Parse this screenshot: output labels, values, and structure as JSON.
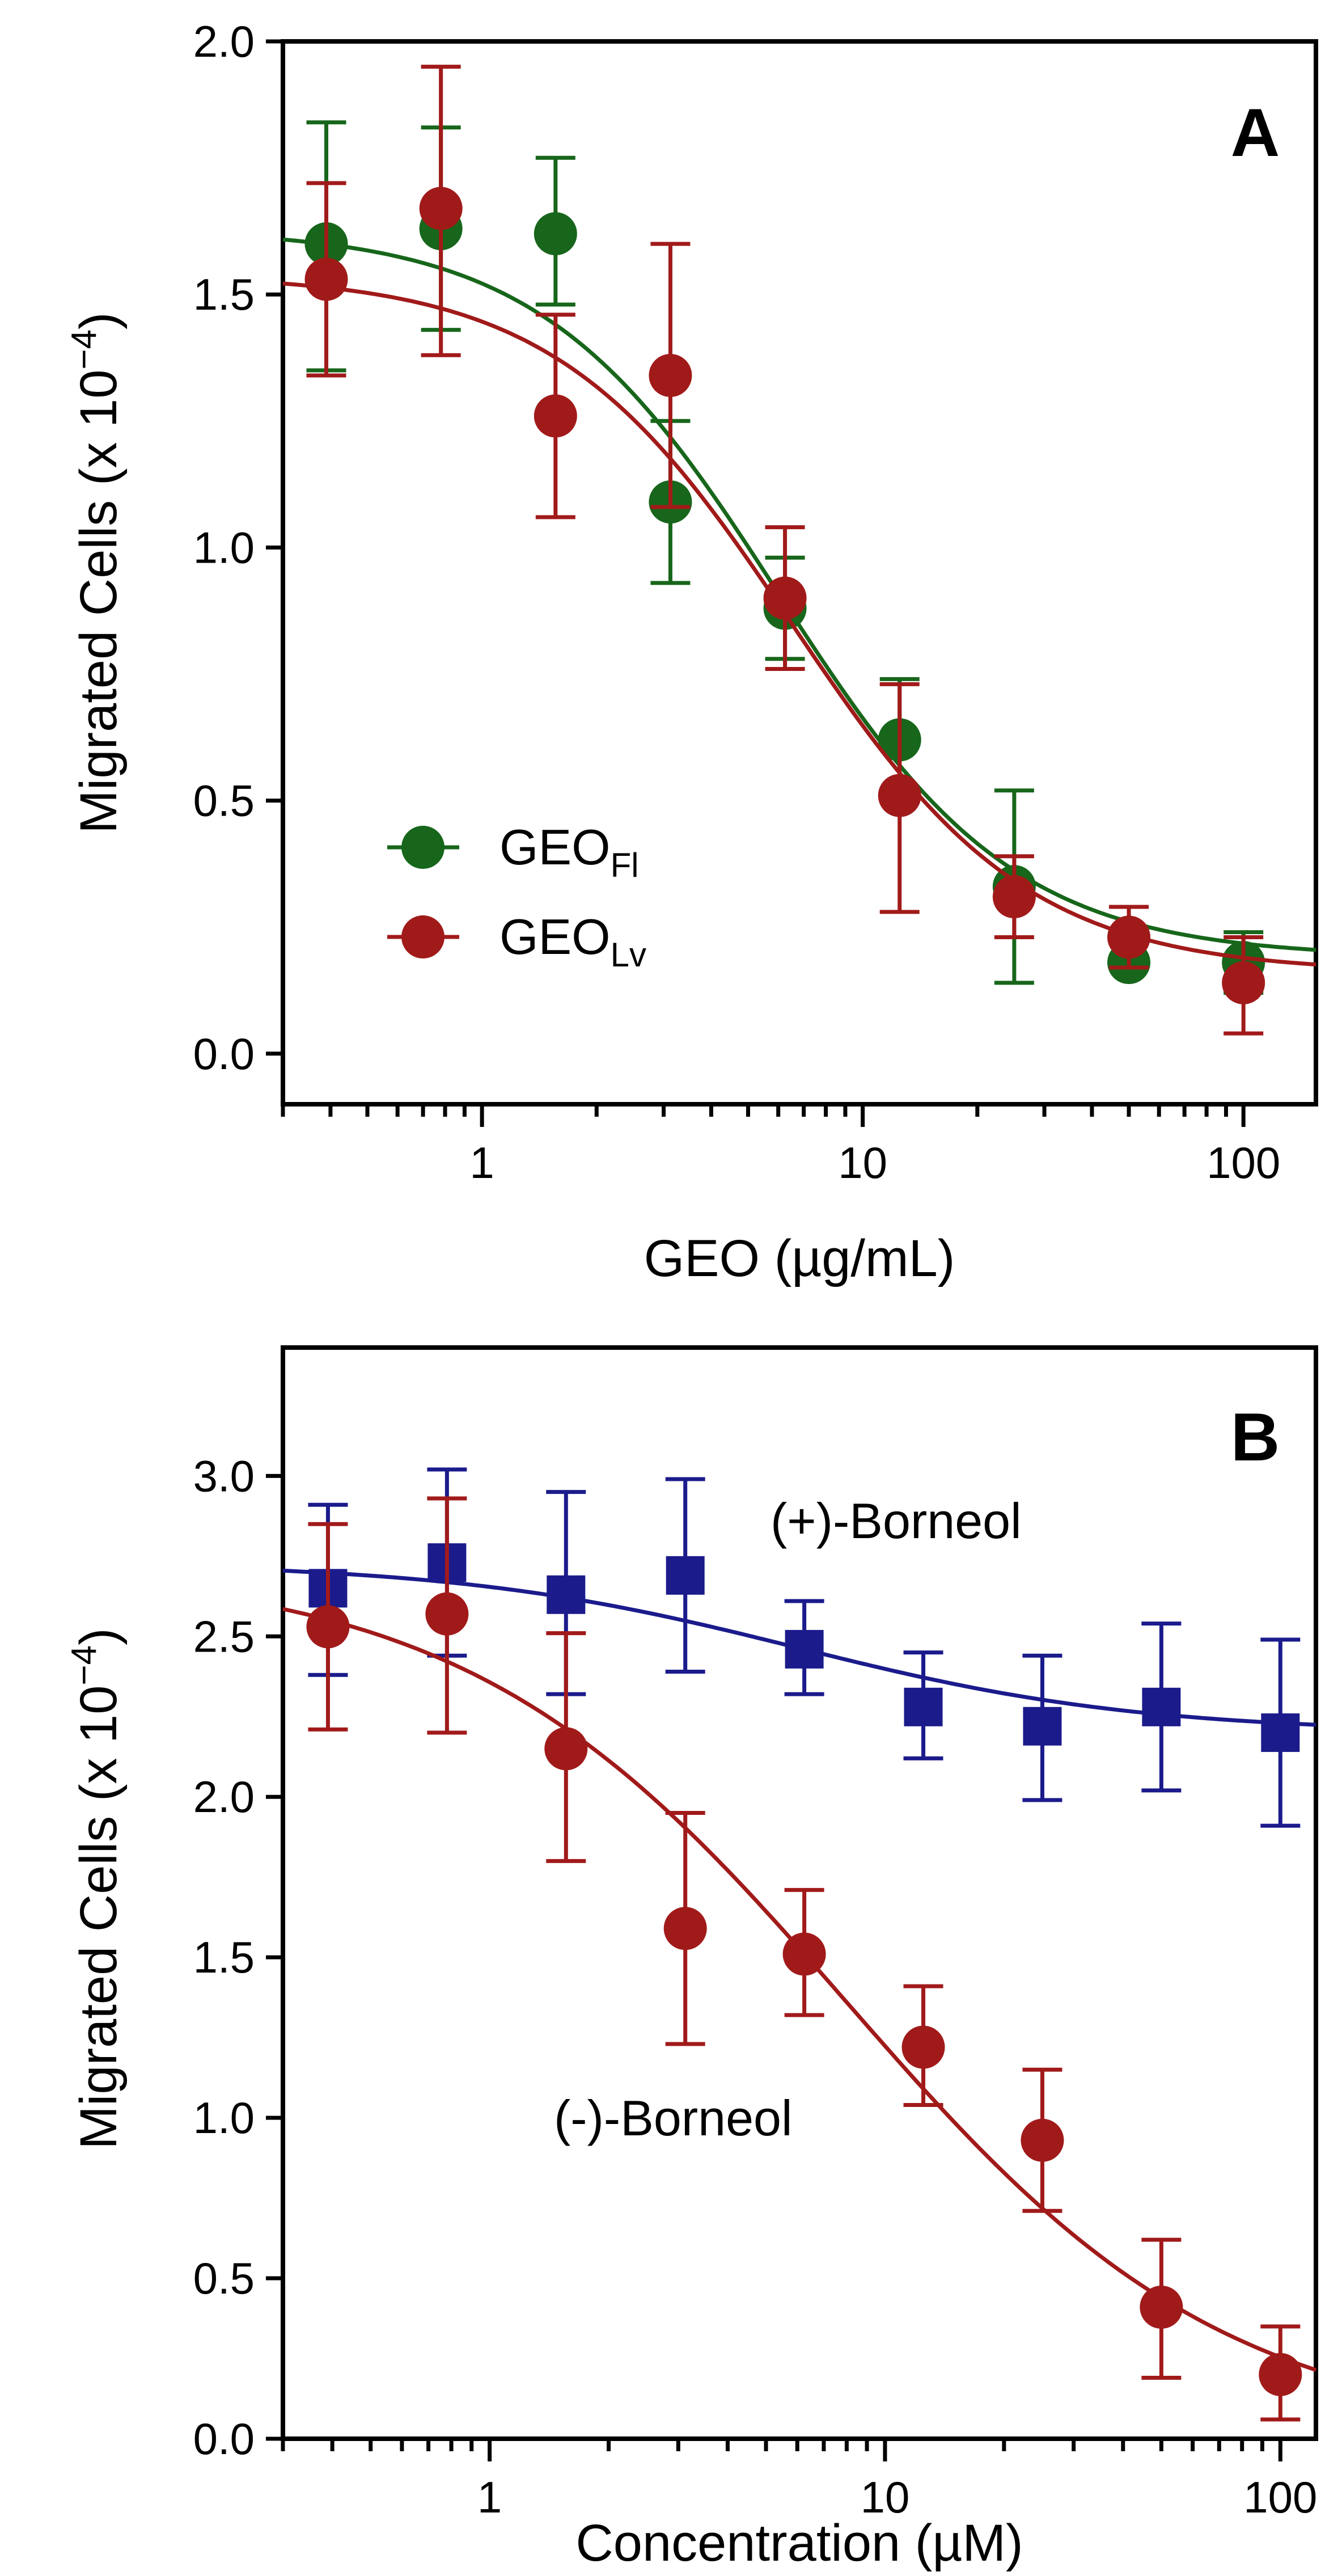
{
  "colors": {
    "green": "#17661b",
    "red": "#a11a1a",
    "blue": "#1b1b8c",
    "axis": "#000000"
  },
  "chart_data": [
    {
      "type": "scatter",
      "panel_label": "A",
      "title": "",
      "xlabel": "GEO (µg/mL)",
      "ylabel": {
        "main": "Migrated Cells (x 10",
        "sup": "−4",
        "end": ")"
      },
      "xscale": "log",
      "xlim": [
        0.3,
        155
      ],
      "ylim": [
        -0.1,
        2.0
      ],
      "xticks": [
        {
          "value": 1,
          "label": "1"
        },
        {
          "value": 10,
          "label": "10"
        },
        {
          "value": 100,
          "label": "100"
        }
      ],
      "yticks": [
        {
          "value": 0,
          "label": "0.0"
        },
        {
          "value": 0.5,
          "label": "0.5"
        },
        {
          "value": 1.0,
          "label": "1.0"
        },
        {
          "value": 1.5,
          "label": "1.5"
        },
        {
          "value": 2.0,
          "label": "2.0"
        }
      ],
      "legend_position": "lower-left",
      "series": [
        {
          "name": "GEO",
          "sub": "Fl",
          "color": "green",
          "marker": "circle",
          "x": [
            0.39,
            0.78,
            1.56,
            3.125,
            6.25,
            12.5,
            25,
            50,
            100
          ],
          "y": [
            1.6,
            1.63,
            1.62,
            1.09,
            0.88,
            0.62,
            0.33,
            0.18,
            0.18
          ],
          "err_low": [
            1.35,
            1.43,
            1.48,
            0.93,
            0.78,
            0.5,
            0.14,
            0.18,
            0.12
          ],
          "err_high": [
            1.84,
            1.83,
            1.77,
            1.25,
            0.98,
            0.74,
            0.52,
            0.18,
            0.24
          ],
          "fit": {
            "top": 1.63,
            "bottom": 0.19,
            "ic50": 6.0,
            "hill": 1.4
          }
        },
        {
          "name": "GEO",
          "sub": "Lv",
          "color": "red",
          "marker": "circle",
          "x": [
            0.39,
            0.78,
            1.56,
            3.125,
            6.25,
            12.5,
            25,
            50,
            100
          ],
          "y": [
            1.53,
            1.67,
            1.26,
            1.34,
            0.9,
            0.51,
            0.31,
            0.23,
            0.14
          ],
          "err_low": [
            1.34,
            1.38,
            1.06,
            1.08,
            0.76,
            0.28,
            0.23,
            0.17,
            0.04
          ],
          "err_high": [
            1.72,
            1.95,
            1.46,
            1.6,
            1.04,
            0.73,
            0.39,
            0.29,
            0.23
          ],
          "fit": {
            "top": 1.54,
            "bottom": 0.16,
            "ic50": 6.5,
            "hill": 1.4
          }
        }
      ]
    },
    {
      "type": "scatter",
      "panel_label": "B",
      "title": "",
      "xlabel": "Concentration (µM)",
      "ylabel": {
        "main": "Migrated Cells (x 10",
        "sup": "−4",
        "end": ")"
      },
      "xscale": "log",
      "xlim": [
        0.3,
        123
      ],
      "ylim": [
        0,
        3.4
      ],
      "xticks": [
        {
          "value": 1,
          "label": "1"
        },
        {
          "value": 10,
          "label": "10"
        },
        {
          "value": 100,
          "label": "100"
        }
      ],
      "yticks": [
        {
          "value": 0,
          "label": "0.0"
        },
        {
          "value": 0.5,
          "label": "0.5"
        },
        {
          "value": 1.0,
          "label": "1.0"
        },
        {
          "value": 1.5,
          "label": "1.5"
        },
        {
          "value": 2.0,
          "label": "2.0"
        },
        {
          "value": 2.5,
          "label": "2.5"
        },
        {
          "value": 3.0,
          "label": "3.0"
        }
      ],
      "series": [
        {
          "name": "(+)-Borneol",
          "color": "blue",
          "marker": "square",
          "x": [
            0.39,
            0.78,
            1.56,
            3.125,
            6.25,
            12.5,
            25,
            50,
            100
          ],
          "y": [
            2.65,
            2.73,
            2.63,
            2.69,
            2.46,
            2.28,
            2.22,
            2.28,
            2.2
          ],
          "err_low": [
            2.38,
            2.44,
            2.32,
            2.39,
            2.32,
            2.12,
            1.99,
            2.02,
            1.91
          ],
          "err_high": [
            2.91,
            3.02,
            2.95,
            2.99,
            2.61,
            2.45,
            2.44,
            2.54,
            2.49
          ],
          "fit": {
            "top": 2.73,
            "bottom": 2.2,
            "ic50": 6.0,
            "hill": 1.0
          }
        },
        {
          "name": "(-)-Borneol",
          "color": "red",
          "marker": "circle",
          "x": [
            0.39,
            0.78,
            1.56,
            3.125,
            6.25,
            12.5,
            25,
            50,
            100
          ],
          "y": [
            2.53,
            2.57,
            2.15,
            1.59,
            1.51,
            1.22,
            0.93,
            0.41,
            0.2
          ],
          "err_low": [
            2.21,
            2.2,
            1.8,
            1.23,
            1.32,
            1.04,
            0.71,
            0.19,
            0.06
          ],
          "err_high": [
            2.85,
            2.93,
            2.51,
            1.95,
            1.71,
            1.41,
            1.15,
            0.62,
            0.35
          ],
          "fit": {
            "top": 2.72,
            "bottom": 0.0,
            "ic50": 8.0,
            "hill": 0.9
          }
        }
      ]
    }
  ]
}
